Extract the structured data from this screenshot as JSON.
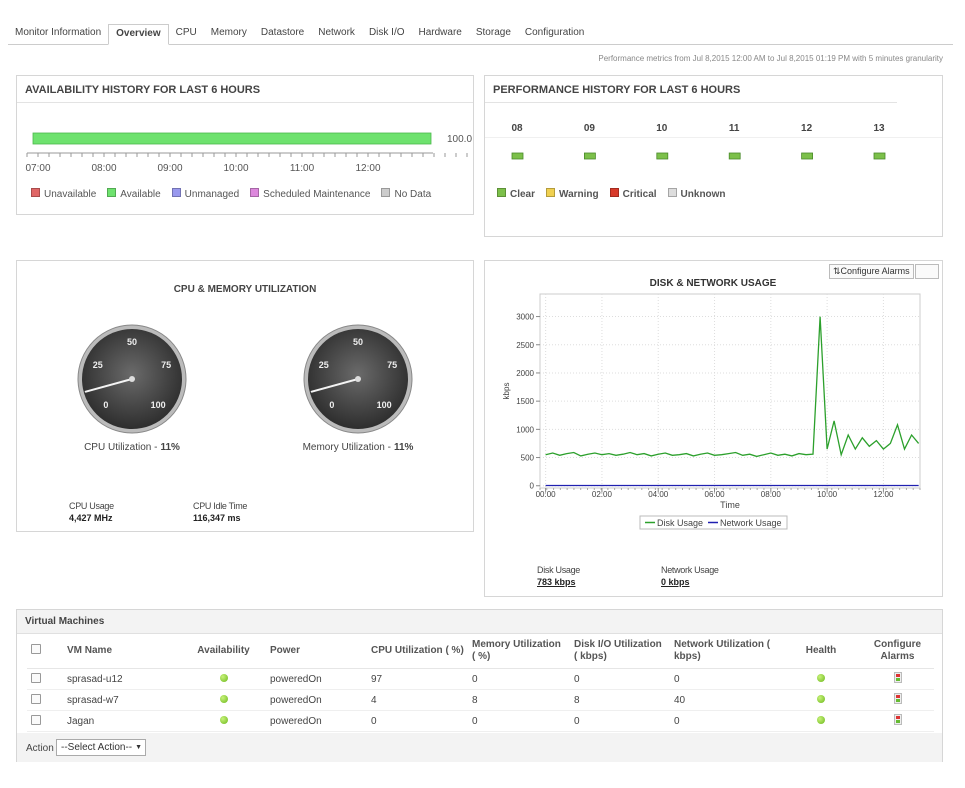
{
  "tabs": [
    "Monitor Information",
    "Overview",
    "CPU",
    "Memory",
    "Datastore",
    "Network",
    "Disk I/O",
    "Hardware",
    "Storage",
    "Configuration"
  ],
  "metrics_note": "Performance metrics from Jul 8,2015 12:00 AM to Jul 8,2015 01:19 PM with 5 minutes granularity",
  "chart_data": [
    {
      "type": "bar",
      "title": "AVAILABILITY HISTORY FOR LAST 6 HOURS",
      "values": [
        100
      ],
      "value_labels": [
        "100.0"
      ],
      "xlim": [
        0,
        100
      ],
      "color": "#6ee26e",
      "time_labels": [
        "07:00",
        "08:00",
        "09:00",
        "10:00",
        "11:00",
        "12:00"
      ],
      "legend": [
        {
          "name": "Unavailable",
          "color": "#e06666"
        },
        {
          "name": "Available",
          "color": "#6ee26e"
        },
        {
          "name": "Unmanaged",
          "color": "#9999ee"
        },
        {
          "name": "Scheduled Maintenance",
          "color": "#dd88dd"
        },
        {
          "name": "No Data",
          "color": "#cccccc"
        }
      ]
    },
    {
      "type": "status",
      "title": "PERFORMANCE HISTORY FOR LAST 6 HOURS",
      "categories": [
        "08",
        "09",
        "10",
        "11",
        "12",
        "13"
      ],
      "legend": [
        {
          "name": "Clear",
          "color": "#7cc04a"
        },
        {
          "name": "Warning",
          "color": "#f0d050"
        },
        {
          "name": "Critical",
          "color": "#d83a2a"
        },
        {
          "name": "Unknown",
          "color": "#dddddd"
        }
      ]
    },
    {
      "type": "gauge",
      "title": "CPU & MEMORY UTILIZATION",
      "gauges": [
        {
          "label": "CPU Utilization -",
          "value": 11,
          "value_label": "11%"
        },
        {
          "label": "Memory Utilization -",
          "value": 11,
          "value_label": "11%"
        }
      ],
      "ylim": [
        0,
        100
      ],
      "yticks": [
        0,
        25,
        50,
        75,
        100
      ],
      "stats": [
        {
          "label": "CPU Usage",
          "value": "4,427 MHz"
        },
        {
          "label": "CPU Idle Time",
          "value": "116,347 ms"
        }
      ]
    },
    {
      "type": "line",
      "title": "DISK & NETWORK USAGE",
      "buttons": [
        "Configure Alarms"
      ],
      "xlabel": "Time",
      "ylabel": "kbps",
      "x": [
        0,
        0.25,
        0.5,
        0.75,
        1,
        1.25,
        1.5,
        1.75,
        2,
        2.25,
        2.5,
        2.75,
        3,
        3.25,
        3.5,
        3.75,
        4,
        4.25,
        4.5,
        4.75,
        5,
        5.25,
        5.5,
        5.75,
        6,
        6.25,
        6.5,
        6.75,
        7,
        7.25,
        7.5,
        7.75,
        8,
        8.25,
        8.5,
        8.75,
        9,
        9.25,
        9.5,
        9.75,
        10,
        10.25,
        10.5,
        10.75,
        11,
        11.25,
        11.5,
        11.75,
        12,
        12.25,
        12.5,
        12.75,
        13,
        13.25
      ],
      "series": [
        {
          "name": "Disk Usage",
          "color": "#2ca02c",
          "values": [
            550,
            580,
            540,
            570,
            590,
            530,
            560,
            580,
            550,
            570,
            540,
            560,
            590,
            550,
            570,
            530,
            560,
            580,
            540,
            550,
            570,
            530,
            560,
            580,
            540,
            550,
            570,
            590,
            540,
            560,
            520,
            550,
            580,
            540,
            560,
            530,
            570,
            550,
            560,
            3000,
            650,
            1150,
            550,
            900,
            650,
            850,
            700,
            800,
            650,
            750,
            1080,
            650,
            900,
            750
          ]
        },
        {
          "name": "Network Usage",
          "color": "#2020b0",
          "values": [
            5,
            5,
            5,
            5,
            5,
            5,
            5,
            5,
            5,
            5,
            5,
            5,
            5,
            5,
            5,
            5,
            5,
            5,
            5,
            5,
            5,
            5,
            5,
            5,
            5,
            5,
            5,
            5,
            5,
            5,
            5,
            5,
            5,
            5,
            5,
            5,
            5,
            5,
            5,
            5,
            5,
            5,
            5,
            5,
            5,
            5,
            5,
            5,
            5,
            5,
            5,
            5,
            5,
            5
          ]
        }
      ],
      "xlim": [
        -0.2,
        13.3
      ],
      "xticks": [
        {
          "value": 0,
          "label": "00:00"
        },
        {
          "value": 2,
          "label": "02:00"
        },
        {
          "value": 4,
          "label": "04:00"
        },
        {
          "value": 6,
          "label": "06:00"
        },
        {
          "value": 8,
          "label": "08:00"
        },
        {
          "value": 10,
          "label": "10:00"
        },
        {
          "value": 12,
          "label": "12:00"
        }
      ],
      "ylim": [
        -40,
        3400
      ],
      "yticks": [
        0,
        500,
        1000,
        1500,
        2000,
        2500,
        3000
      ],
      "grid": true,
      "stats": [
        {
          "label": "Disk Usage",
          "value": "783 kbps"
        },
        {
          "label": "Network Usage",
          "value": "0 kbps"
        }
      ]
    }
  ],
  "vm_table": {
    "title": "Virtual Machines",
    "headers": [
      "VM Name",
      "Availability",
      "Power",
      "CPU Utilization ( %)",
      "Memory Utilization ( %)",
      "Disk I/O Utilization ( kbps)",
      "Network Utilization ( kbps)",
      "Health",
      "Configure Alarms"
    ],
    "rows": [
      [
        "sprasad-u12",
        "poweredOn",
        97,
        0,
        0,
        0
      ],
      [
        "sprasad-w7",
        "poweredOn",
        4,
        8,
        8,
        40
      ],
      [
        "Jagan",
        "poweredOn",
        0,
        0,
        0,
        0
      ]
    ],
    "action_label": "Action",
    "action_select": "--Select Action--"
  }
}
